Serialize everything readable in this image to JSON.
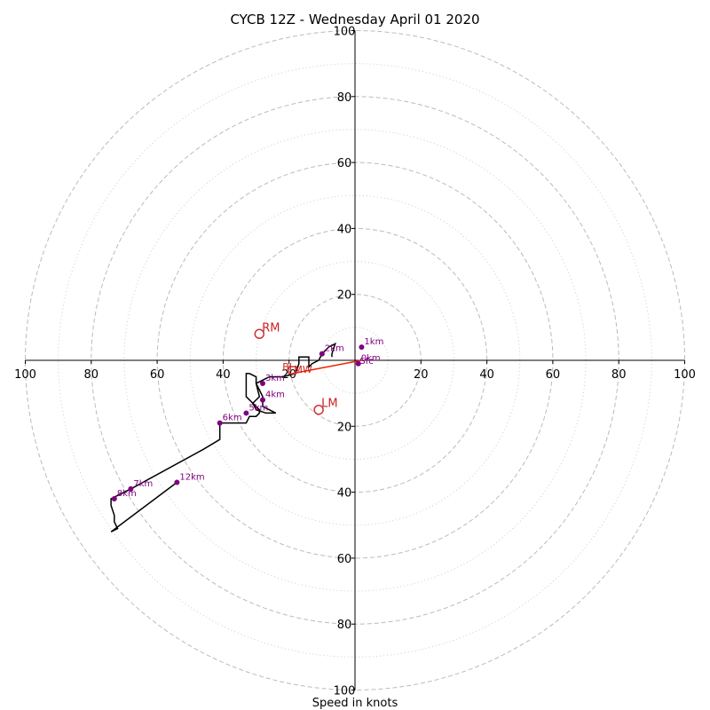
{
  "chart_data": {
    "type": "hodograph",
    "title": "CYCB 12Z - Wednesday April 01 2020",
    "xlabel": "Speed in knots",
    "ylabel": "",
    "xlim": [
      -100,
      100
    ],
    "ylim": [
      -100,
      100
    ],
    "major_rings": [
      20,
      40,
      60,
      80,
      100
    ],
    "minor_rings": [
      10,
      30,
      50,
      70,
      90
    ],
    "tick_values": [
      100,
      80,
      60,
      40,
      20
    ],
    "x_ticks": [
      {
        "v": -100,
        "label": "100"
      },
      {
        "v": -80,
        "label": "80"
      },
      {
        "v": -60,
        "label": "60"
      },
      {
        "v": -40,
        "label": "40"
      },
      {
        "v": -20,
        "label": "20"
      },
      {
        "v": 20,
        "label": "20"
      },
      {
        "v": 40,
        "label": "40"
      },
      {
        "v": 60,
        "label": "60"
      },
      {
        "v": 80,
        "label": "80"
      },
      {
        "v": 100,
        "label": "100"
      }
    ],
    "y_ticks": [
      {
        "v": 100,
        "label": "100"
      },
      {
        "v": 80,
        "label": "80"
      },
      {
        "v": 60,
        "label": "60"
      },
      {
        "v": 40,
        "label": "40"
      },
      {
        "v": 20,
        "label": "20"
      },
      {
        "v": -20,
        "label": "20"
      },
      {
        "v": -40,
        "label": "40"
      },
      {
        "v": -60,
        "label": "60"
      },
      {
        "v": -80,
        "label": "80"
      },
      {
        "v": -100,
        "label": "100"
      }
    ],
    "hodograph": [
      [
        -7,
        1
      ],
      [
        -7,
        2
      ],
      [
        -6,
        5
      ],
      [
        -8,
        4
      ],
      [
        -10,
        2
      ],
      [
        -11,
        0
      ],
      [
        -13,
        -1
      ],
      [
        -14,
        -2
      ],
      [
        -14,
        1
      ],
      [
        -16,
        1
      ],
      [
        -17,
        1
      ],
      [
        -17,
        -1
      ],
      [
        -18,
        -4
      ],
      [
        -22,
        -5
      ],
      [
        -26,
        -5
      ],
      [
        -28,
        -6
      ],
      [
        -30,
        -7
      ],
      [
        -29,
        -9
      ],
      [
        -28,
        -11
      ],
      [
        -28,
        -12
      ],
      [
        -28,
        -14
      ],
      [
        -26,
        -15
      ],
      [
        -24,
        -16
      ],
      [
        -27,
        -16
      ],
      [
        -30,
        -15
      ],
      [
        -31,
        -13
      ],
      [
        -30,
        -12
      ],
      [
        -29,
        -11
      ],
      [
        -30,
        -7
      ],
      [
        -30,
        -5
      ],
      [
        -32,
        -4
      ],
      [
        -33,
        -4
      ],
      [
        -33,
        -8
      ],
      [
        -33,
        -11
      ],
      [
        -29,
        -15
      ],
      [
        -29,
        -16
      ],
      [
        -30,
        -17
      ],
      [
        -32,
        -17
      ],
      [
        -33,
        -19
      ],
      [
        -38,
        -19
      ],
      [
        -41,
        -19
      ],
      [
        -41,
        -22
      ],
      [
        -41,
        -24
      ],
      [
        -46,
        -27
      ],
      [
        -68,
        -39
      ],
      [
        -70,
        -40
      ],
      [
        -74,
        -42
      ],
      [
        -74,
        -44
      ],
      [
        -73,
        -47
      ],
      [
        -73,
        -49
      ],
      [
        -72,
        -51
      ],
      [
        -74,
        -52
      ],
      [
        -54,
        -37
      ]
    ],
    "height_markers": [
      {
        "label": "0km",
        "u": 1,
        "v": -1
      },
      {
        "label": "1km",
        "u": 2,
        "v": 4
      },
      {
        "label": "2km",
        "u": -10,
        "v": 2
      },
      {
        "label": "3km",
        "u": -28,
        "v": -7
      },
      {
        "label": "4km",
        "u": -28,
        "v": -12
      },
      {
        "label": "5km",
        "u": -33,
        "v": -16
      },
      {
        "label": "6km",
        "u": -41,
        "v": -19
      },
      {
        "label": "7km",
        "u": -68,
        "v": -39
      },
      {
        "label": "8km",
        "u": -73,
        "v": -42
      },
      {
        "label": "12km",
        "u": -54,
        "v": -37
      }
    ],
    "storm_motion": [
      {
        "label": "RM",
        "u": -29,
        "v": 8
      },
      {
        "label": "LM",
        "u": -11,
        "v": -15
      },
      {
        "label": "MW",
        "u": -19,
        "v": -3
      }
    ],
    "shear_line": [
      [
        2,
        0
      ],
      [
        -19,
        -4
      ]
    ],
    "shear_label": "BI",
    "sfc_label": "Sfc",
    "sfc_point": [
      2,
      0
    ],
    "mw_label": "MW",
    "twenty_label": "20"
  }
}
